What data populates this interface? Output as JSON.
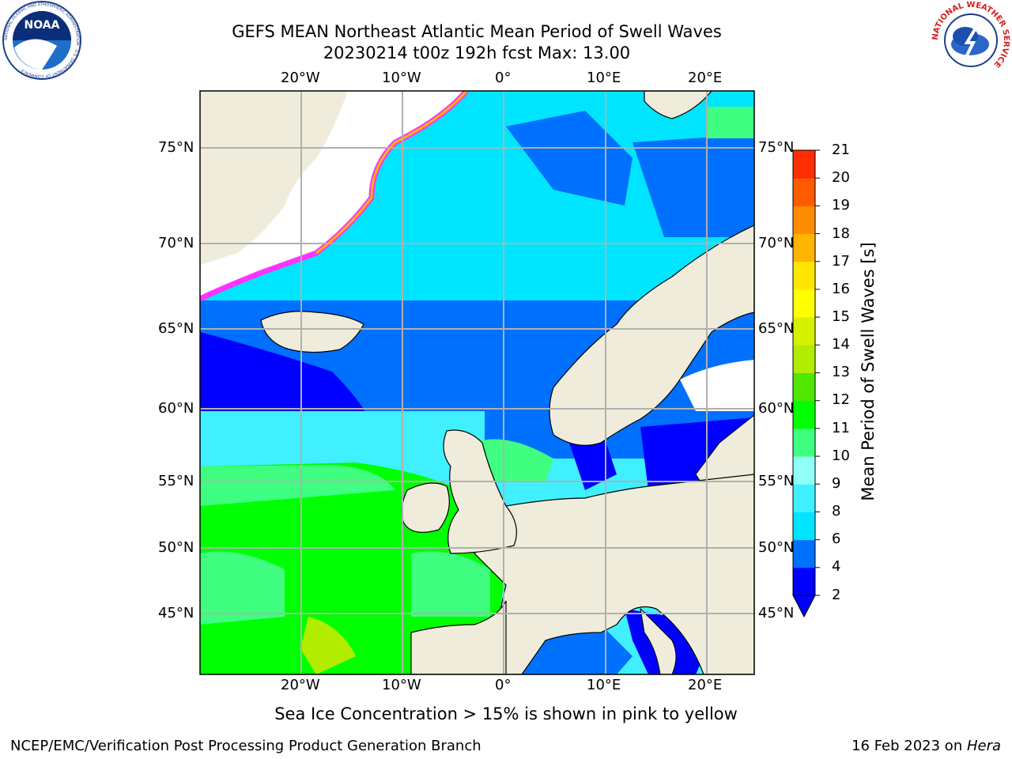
{
  "title": {
    "line1": "GEFS MEAN Northeast Atlantic Mean Period of Swell Waves",
    "line2": "20230214 t00z 192h fcst   Max: 13.00"
  },
  "map": {
    "top_lon_labels": [
      "20°W",
      "10°W",
      "0°",
      "10°E",
      "20°E"
    ],
    "bottom_lon_labels": [
      "20°W",
      "10°W",
      "0°",
      "10°E",
      "20°E"
    ],
    "left_lat_labels": [
      "75°N",
      "70°N",
      "65°N",
      "60°N",
      "55°N",
      "50°N",
      "45°N"
    ],
    "right_lat_labels": [
      "75°N",
      "70°N",
      "65°N",
      "60°N",
      "55°N",
      "50°N",
      "45°N"
    ],
    "colors": {
      "land": "#efecdb",
      "ice": "#ff33ff",
      "grid": "#b0b0b0"
    }
  },
  "colorbar": {
    "label": "Mean Period of Swell Waves [s]",
    "ticks": [
      "21",
      "20",
      "19",
      "18",
      "17",
      "16",
      "15",
      "14",
      "13",
      "12",
      "11",
      "10",
      "9",
      "8",
      "6",
      "4",
      "2"
    ],
    "levels": [
      2,
      4,
      6,
      8,
      9,
      10,
      11,
      12,
      13,
      14,
      15,
      16,
      17,
      18,
      19,
      20,
      21
    ],
    "colors": [
      "#0000ff",
      "#0070ff",
      "#00e5ff",
      "#40f0ff",
      "#90fff6",
      "#40ff80",
      "#00ff00",
      "#50e600",
      "#b2ec00",
      "#d6f000",
      "#ffff00",
      "#ffe600",
      "#ffb400",
      "#ff8c00",
      "#ff5a00",
      "#ff2d00",
      "#ff0000"
    ],
    "under_color": "#0000ff"
  },
  "caption": "Sea Ice Concentration > 15% is shown in pink to yellow",
  "footer": {
    "left": "NCEP/EMC/Verification Post Processing Product Generation Branch",
    "right_date": "16 Feb 2023 on ",
    "right_host": "Hera"
  },
  "logos": {
    "noaa": "NOAA",
    "noaa_ring_text": "NATIONAL OCEANIC AND ATMOSPHERIC ADMINISTRATION · U.S. DEPARTMENT OF COMMERCE",
    "nws_ring_text": "NATIONAL WEATHER SERVICE"
  }
}
